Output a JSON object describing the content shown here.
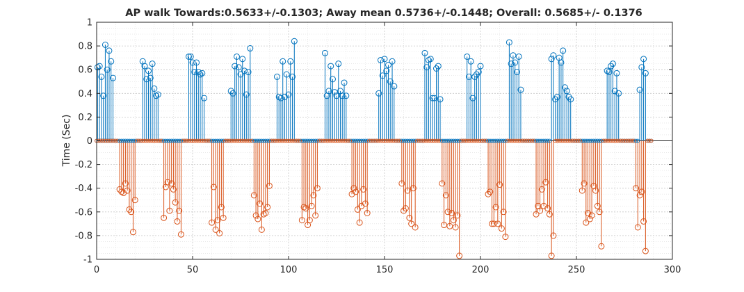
{
  "chart_data": {
    "type": "stem",
    "title": "AP walk Towards:0.5633+/-0.1303; Away mean 0.5736+/-0.1448; Overall: 0.5685+/- 0.1376",
    "xlabel": "",
    "ylabel": "Time (Sec)",
    "xlim": [
      0,
      300
    ],
    "ylim": [
      -1,
      1
    ],
    "xticks": [
      "0",
      "50",
      "100",
      "150",
      "200",
      "250",
      "300"
    ],
    "yticks": [
      "1",
      "0.8",
      "0.6",
      "0.4",
      "0.2",
      "0",
      "-0.2",
      "-0.4",
      "-0.6",
      "-0.8",
      "-1"
    ],
    "grid": true,
    "minor_grid": true,
    "colors": {
      "towards": "#0072BD",
      "away": "#D95319"
    },
    "series": [
      {
        "color": "towards",
        "points": [
          [
            0.5,
            0.62
          ],
          [
            1.5,
            0.63
          ],
          [
            2.5,
            0.54
          ],
          [
            3.5,
            0.38
          ],
          [
            4.5,
            0.81
          ],
          [
            5.5,
            0.6
          ],
          [
            6.5,
            0.76
          ],
          [
            7.5,
            0.67
          ],
          [
            8.5,
            0.53
          ],
          [
            24,
            0.67
          ],
          [
            25,
            0.63
          ],
          [
            26,
            0.52
          ],
          [
            27,
            0.59
          ],
          [
            28,
            0.53
          ],
          [
            29,
            0.65
          ],
          [
            30,
            0.44
          ],
          [
            31,
            0.38
          ],
          [
            32,
            0.39
          ],
          [
            48,
            0.71
          ],
          [
            49,
            0.71
          ],
          [
            50,
            0.66
          ],
          [
            51,
            0.58
          ],
          [
            52,
            0.66
          ],
          [
            53,
            0.58
          ],
          [
            54,
            0.56
          ],
          [
            55,
            0.57
          ],
          [
            56,
            0.36
          ],
          [
            70,
            0.42
          ],
          [
            71,
            0.4
          ],
          [
            72,
            0.63
          ],
          [
            73,
            0.71
          ],
          [
            74,
            0.62
          ],
          [
            75,
            0.56
          ],
          [
            76,
            0.69
          ],
          [
            77,
            0.59
          ],
          [
            78,
            0.39
          ],
          [
            79,
            0.58
          ],
          [
            80,
            0.78
          ],
          [
            94,
            0.54
          ],
          [
            95,
            0.37
          ],
          [
            96,
            0.36
          ],
          [
            97,
            0.67
          ],
          [
            98,
            0.37
          ],
          [
            99,
            0.56
          ],
          [
            100,
            0.39
          ],
          [
            101,
            0.67
          ],
          [
            102,
            0.54
          ],
          [
            103,
            0.84
          ],
          [
            119,
            0.74
          ],
          [
            120,
            0.38
          ],
          [
            121,
            0.42
          ],
          [
            122,
            0.63
          ],
          [
            123,
            0.52
          ],
          [
            124,
            0.41
          ],
          [
            125,
            0.38
          ],
          [
            126,
            0.65
          ],
          [
            127,
            0.42
          ],
          [
            128,
            0.38
          ],
          [
            129,
            0.49
          ],
          [
            130,
            0.38
          ],
          [
            147,
            0.4
          ],
          [
            148,
            0.68
          ],
          [
            149,
            0.55
          ],
          [
            150,
            0.69
          ],
          [
            151,
            0.59
          ],
          [
            152,
            0.64
          ],
          [
            153,
            0.5
          ],
          [
            154,
            0.67
          ],
          [
            155,
            0.46
          ],
          [
            171,
            0.74
          ],
          [
            172,
            0.62
          ],
          [
            173,
            0.68
          ],
          [
            174,
            0.69
          ],
          [
            175,
            0.36
          ],
          [
            176,
            0.36
          ],
          [
            177,
            0.61
          ],
          [
            178,
            0.63
          ],
          [
            179,
            0.35
          ],
          [
            193,
            0.71
          ],
          [
            194,
            0.54
          ],
          [
            195,
            0.67
          ],
          [
            196,
            0.36
          ],
          [
            197,
            0.54
          ],
          [
            198,
            0.56
          ],
          [
            199,
            0.58
          ],
          [
            200,
            0.63
          ],
          [
            215,
            0.83
          ],
          [
            216,
            0.65
          ],
          [
            217,
            0.72
          ],
          [
            218,
            0.66
          ],
          [
            219,
            0.58
          ],
          [
            220,
            0.71
          ],
          [
            221,
            0.43
          ],
          [
            237,
            0.69
          ],
          [
            238,
            0.72
          ],
          [
            239,
            0.35
          ],
          [
            240,
            0.37
          ],
          [
            241,
            0.7
          ],
          [
            242,
            0.66
          ],
          [
            243,
            0.76
          ],
          [
            244,
            0.45
          ],
          [
            245,
            0.42
          ],
          [
            246,
            0.37
          ],
          [
            247,
            0.35
          ],
          [
            266,
            0.59
          ],
          [
            267,
            0.58
          ],
          [
            268,
            0.63
          ],
          [
            269,
            0.65
          ],
          [
            270,
            0.42
          ],
          [
            271,
            0.57
          ],
          [
            272,
            0.4
          ],
          [
            283,
            0.43
          ],
          [
            284,
            0.62
          ],
          [
            285,
            0.69
          ],
          [
            286,
            0.57
          ]
        ]
      },
      {
        "color": "away",
        "points": [
          [
            12,
            -0.41
          ],
          [
            13,
            -0.43
          ],
          [
            14,
            -0.44
          ],
          [
            15,
            -0.36
          ],
          [
            16,
            -0.42
          ],
          [
            17,
            -0.58
          ],
          [
            18,
            -0.6
          ],
          [
            19,
            -0.77
          ],
          [
            20,
            -0.5
          ],
          [
            35,
            -0.65
          ],
          [
            36,
            -0.39
          ],
          [
            37,
            -0.35
          ],
          [
            38,
            -0.59
          ],
          [
            39,
            -0.36
          ],
          [
            40,
            -0.41
          ],
          [
            41,
            -0.52
          ],
          [
            42,
            -0.68
          ],
          [
            43,
            -0.59
          ],
          [
            44,
            -0.79
          ],
          [
            60,
            -0.69
          ],
          [
            61,
            -0.39
          ],
          [
            62,
            -0.75
          ],
          [
            63,
            -0.67
          ],
          [
            64,
            -0.78
          ],
          [
            65,
            -0.56
          ],
          [
            66,
            -0.65
          ],
          [
            82,
            -0.46
          ],
          [
            83,
            -0.63
          ],
          [
            84,
            -0.66
          ],
          [
            85,
            -0.53
          ],
          [
            86,
            -0.75
          ],
          [
            87,
            -0.62
          ],
          [
            88,
            -0.61
          ],
          [
            89,
            -0.56
          ],
          [
            90,
            -0.38
          ],
          [
            107,
            -0.67
          ],
          [
            108,
            -0.56
          ],
          [
            109,
            -0.57
          ],
          [
            110,
            -0.71
          ],
          [
            111,
            -0.67
          ],
          [
            112,
            -0.55
          ],
          [
            113,
            -0.46
          ],
          [
            114,
            -0.63
          ],
          [
            115,
            -0.4
          ],
          [
            133,
            -0.45
          ],
          [
            134,
            -0.4
          ],
          [
            135,
            -0.43
          ],
          [
            136,
            -0.58
          ],
          [
            137,
            -0.69
          ],
          [
            138,
            -0.55
          ],
          [
            139,
            -0.41
          ],
          [
            140,
            -0.53
          ],
          [
            141,
            -0.61
          ],
          [
            159,
            -0.36
          ],
          [
            160,
            -0.59
          ],
          [
            161,
            -0.57
          ],
          [
            162,
            -0.42
          ],
          [
            163,
            -0.65
          ],
          [
            164,
            -0.7
          ],
          [
            165,
            -0.4
          ],
          [
            166,
            -0.73
          ],
          [
            180,
            -0.36
          ],
          [
            181,
            -0.71
          ],
          [
            182,
            -0.46
          ],
          [
            183,
            -0.6
          ],
          [
            184,
            -0.72
          ],
          [
            185,
            -0.61
          ],
          [
            186,
            -0.67
          ],
          [
            187,
            -0.73
          ],
          [
            188,
            -0.63
          ],
          [
            189,
            -0.97
          ],
          [
            204,
            -0.45
          ],
          [
            205,
            -0.43
          ],
          [
            206,
            -0.7
          ],
          [
            207,
            -0.7
          ],
          [
            208,
            -0.56
          ],
          [
            209,
            -0.7
          ],
          [
            210,
            -0.37
          ],
          [
            211,
            -0.74
          ],
          [
            212,
            -0.6
          ],
          [
            213,
            -0.81
          ],
          [
            229,
            -0.62
          ],
          [
            230,
            -0.55
          ],
          [
            231,
            -0.59
          ],
          [
            232,
            -0.41
          ],
          [
            233,
            -0.55
          ],
          [
            234,
            -0.35
          ],
          [
            235,
            -0.57
          ],
          [
            236,
            -0.62
          ],
          [
            237,
            -0.97
          ],
          [
            238,
            -0.8
          ],
          [
            253,
            -0.42
          ],
          [
            254,
            -0.36
          ],
          [
            255,
            -0.69
          ],
          [
            256,
            -0.61
          ],
          [
            257,
            -0.66
          ],
          [
            258,
            -0.63
          ],
          [
            259,
            -0.38
          ],
          [
            260,
            -0.42
          ],
          [
            261,
            -0.55
          ],
          [
            262,
            -0.6
          ],
          [
            263,
            -0.89
          ],
          [
            281,
            -0.4
          ],
          [
            282,
            -0.73
          ],
          [
            283,
            -0.46
          ],
          [
            284,
            -0.43
          ],
          [
            285,
            -0.68
          ],
          [
            286,
            -0.93
          ]
        ]
      }
    ]
  }
}
